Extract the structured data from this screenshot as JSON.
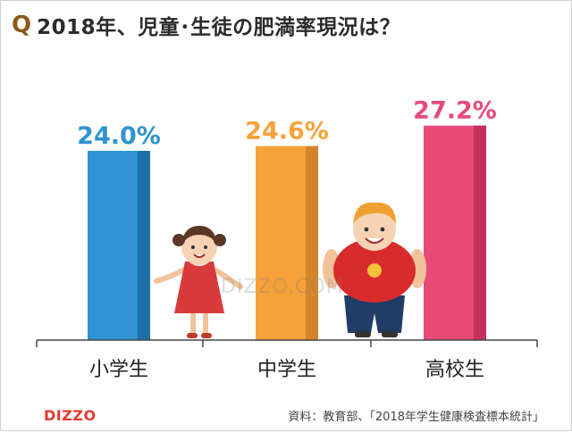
{
  "header": {
    "q_mark": "Q",
    "title": "2018年、児童･生徒の肥満率現況は？"
  },
  "chart_data": {
    "type": "bar",
    "categories": [
      "小学生",
      "中学生",
      "高校生"
    ],
    "values": [
      24.0,
      24.6,
      27.2
    ],
    "value_labels": [
      "24.0%",
      "24.6%",
      "27.2%"
    ],
    "unit": "%",
    "ylim": [
      0,
      30
    ],
    "grid": false,
    "colors": [
      "#2e93d0",
      "#f6a23a",
      "#e84a7a"
    ],
    "shade_colors": [
      "#1d6fa5",
      "#d3852a",
      "#c4305c"
    ]
  },
  "watermark": "DIZZO.COM",
  "footer": {
    "logo": "DIZZO",
    "source": "資料：教育部、「2018年学生健康検査標本統計」"
  }
}
